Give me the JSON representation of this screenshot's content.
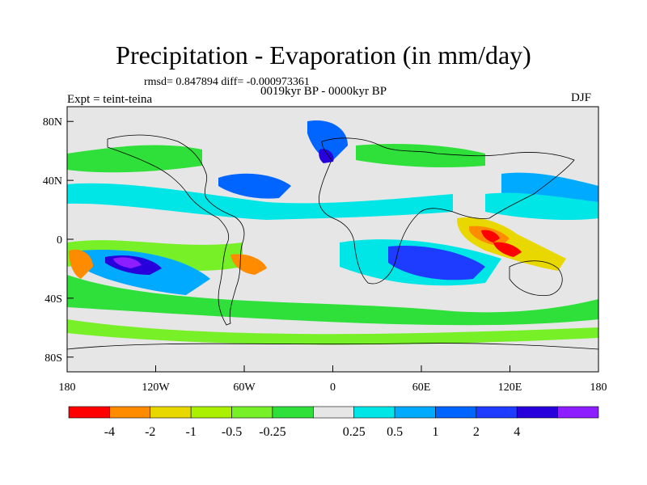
{
  "title": "Precipitation - Evaporation (in mm/day)",
  "stats": "rmsd= 0.847894 diff= -0.000973361",
  "period": "0019kyr BP - 0000kyr BP",
  "experiment": "Expt = teint-teina",
  "season": "DJF",
  "map": {
    "projection": "cylindrical equidistant",
    "lon_range": [
      -180,
      180
    ],
    "lat_range": [
      -90,
      90
    ],
    "background": "#e6e6e6",
    "lon_ticks": [
      {
        "value": -180,
        "label": "180"
      },
      {
        "value": -120,
        "label": "120W"
      },
      {
        "value": -60,
        "label": "60W"
      },
      {
        "value": 0,
        "label": "0"
      },
      {
        "value": 60,
        "label": "60E"
      },
      {
        "value": 120,
        "label": "120E"
      },
      {
        "value": 180,
        "label": "180"
      }
    ],
    "lat_ticks": [
      {
        "value": 80,
        "label": "80N"
      },
      {
        "value": 40,
        "label": "40N"
      },
      {
        "value": 0,
        "label": "0"
      },
      {
        "value": -40,
        "label": "40S"
      },
      {
        "value": -80,
        "label": "80S"
      }
    ]
  },
  "colorbar": {
    "colors": [
      "#ff0000",
      "#ff8c00",
      "#e8d800",
      "#aaf000",
      "#78f028",
      "#2fe03a",
      "#e6e6e6",
      "#00e6e6",
      "#00aaff",
      "#0064ff",
      "#1e3cff",
      "#2800dc",
      "#8c1eff"
    ],
    "labels": [
      "-4",
      "-2",
      "-1",
      "-0.5",
      "-0.25",
      "0.25",
      "0.5",
      "1",
      "2",
      "4"
    ]
  }
}
